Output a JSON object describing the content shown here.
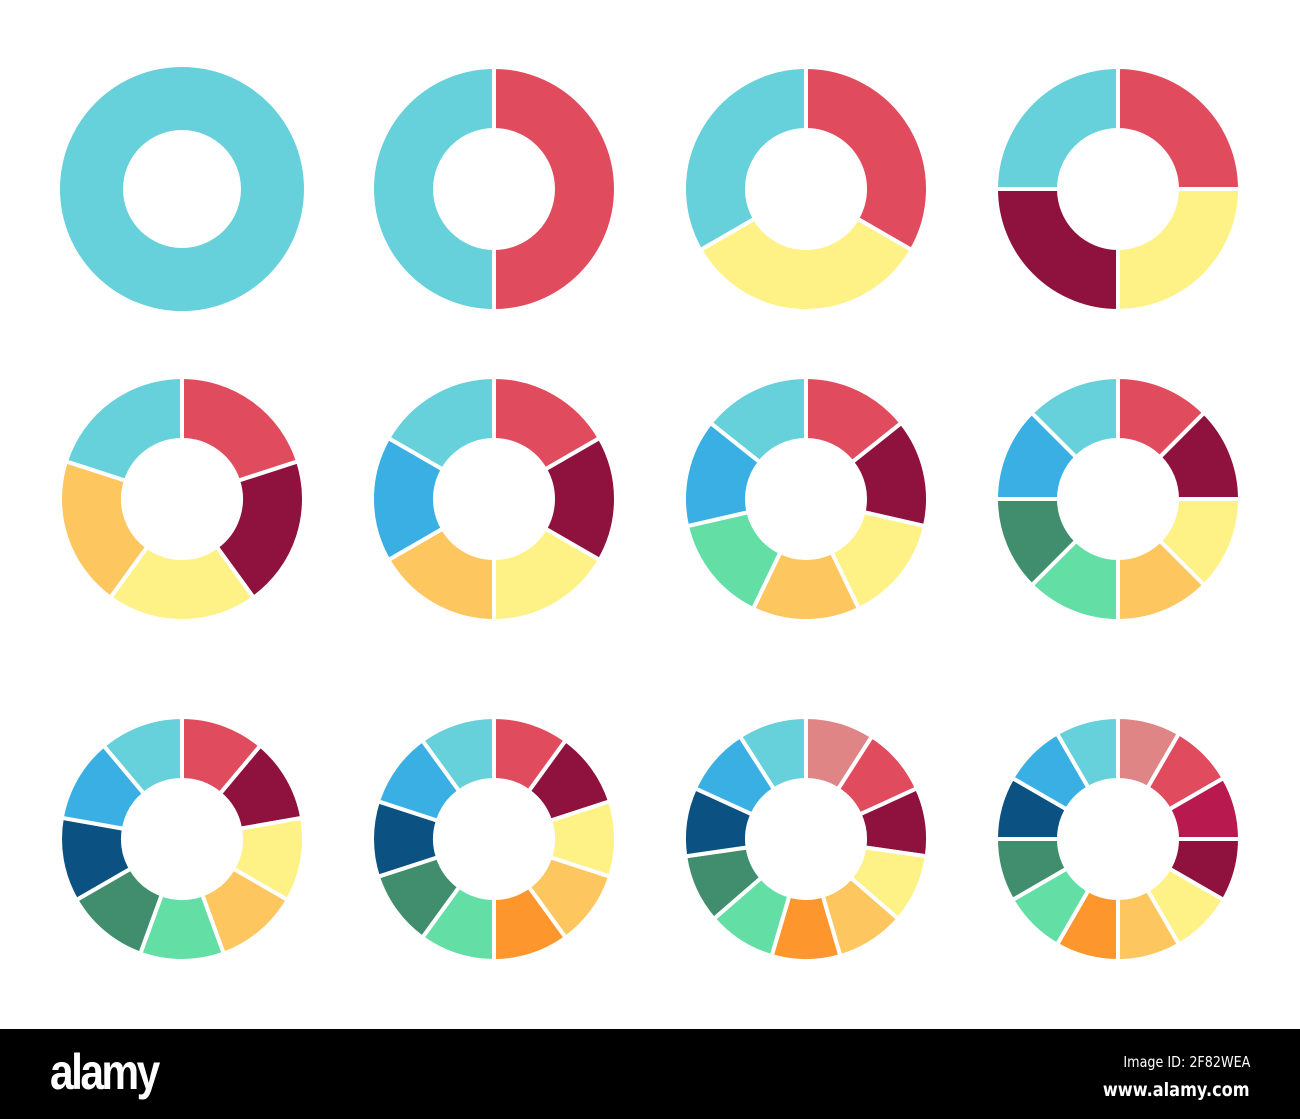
{
  "chart_data": {
    "type": "pie",
    "variant": "donut",
    "start": "top, clockwise",
    "charts": [
      {
        "values": [
          1
        ],
        "colors": [
          "#66d0db"
        ]
      },
      {
        "values": [
          1,
          1
        ],
        "colors": [
          "#e04c5e",
          "#66d0db"
        ]
      },
      {
        "values": [
          1,
          1,
          1
        ],
        "colors": [
          "#e04c5e",
          "#fef185",
          "#66d0db"
        ]
      },
      {
        "values": [
          1,
          1,
          1,
          1
        ],
        "colors": [
          "#e04c5e",
          "#fef185",
          "#8e123d",
          "#66d0db"
        ]
      },
      {
        "values": [
          1,
          1,
          1,
          1,
          1
        ],
        "colors": [
          "#e04c5e",
          "#8e123d",
          "#fef185",
          "#fdc65e",
          "#66d0db"
        ]
      },
      {
        "values": [
          1,
          1,
          1,
          1,
          1,
          1
        ],
        "colors": [
          "#e04c5e",
          "#8e123d",
          "#fef185",
          "#fdc65e",
          "#3aafe3",
          "#66d0db"
        ]
      },
      {
        "values": [
          1,
          1,
          1,
          1,
          1,
          1,
          1
        ],
        "colors": [
          "#e04c5e",
          "#8e123d",
          "#fef185",
          "#fdc65e",
          "#63dfa6",
          "#3aafe3",
          "#66d0db"
        ]
      },
      {
        "values": [
          1,
          1,
          1,
          1,
          1,
          1,
          1,
          1
        ],
        "colors": [
          "#e04c5e",
          "#8e123d",
          "#fef185",
          "#fdc65e",
          "#63dfa6",
          "#418e6e",
          "#3aafe3",
          "#66d0db"
        ]
      },
      {
        "values": [
          1,
          1,
          1,
          1,
          1,
          1,
          1,
          1,
          1
        ],
        "colors": [
          "#e04c5e",
          "#8e123d",
          "#fef185",
          "#fdc65e",
          "#63dfa6",
          "#418e6e",
          "#0b5282",
          "#3aafe3",
          "#66d0db"
        ]
      },
      {
        "values": [
          1,
          1,
          1,
          1,
          1,
          1,
          1,
          1,
          1,
          1
        ],
        "colors": [
          "#e04c5e",
          "#8e123d",
          "#fef185",
          "#fdc65e",
          "#fd962c",
          "#63dfa6",
          "#418e6e",
          "#0b5282",
          "#3aafe3",
          "#66d0db"
        ]
      },
      {
        "values": [
          1,
          1,
          1,
          1,
          1,
          1,
          1,
          1,
          1,
          1,
          1
        ],
        "colors": [
          "#df8585",
          "#e04c5e",
          "#8e123d",
          "#fef185",
          "#fdc65e",
          "#fd962c",
          "#63dfa6",
          "#418e6e",
          "#0b5282",
          "#3aafe3",
          "#66d0db"
        ]
      },
      {
        "values": [
          1,
          1,
          1,
          1,
          1,
          1,
          1,
          1,
          1,
          1,
          1,
          1
        ],
        "colors": [
          "#df8585",
          "#e04c5e",
          "#b81a50",
          "#8e123d",
          "#fef185",
          "#fdc65e",
          "#fd962c",
          "#63dfa6",
          "#418e6e",
          "#0b5282",
          "#3aafe3",
          "#66d0db"
        ]
      }
    ]
  },
  "footer": {
    "logo": "alamy",
    "image_id": "Image ID: 2F82WEA",
    "site": "www.alamy.com"
  }
}
